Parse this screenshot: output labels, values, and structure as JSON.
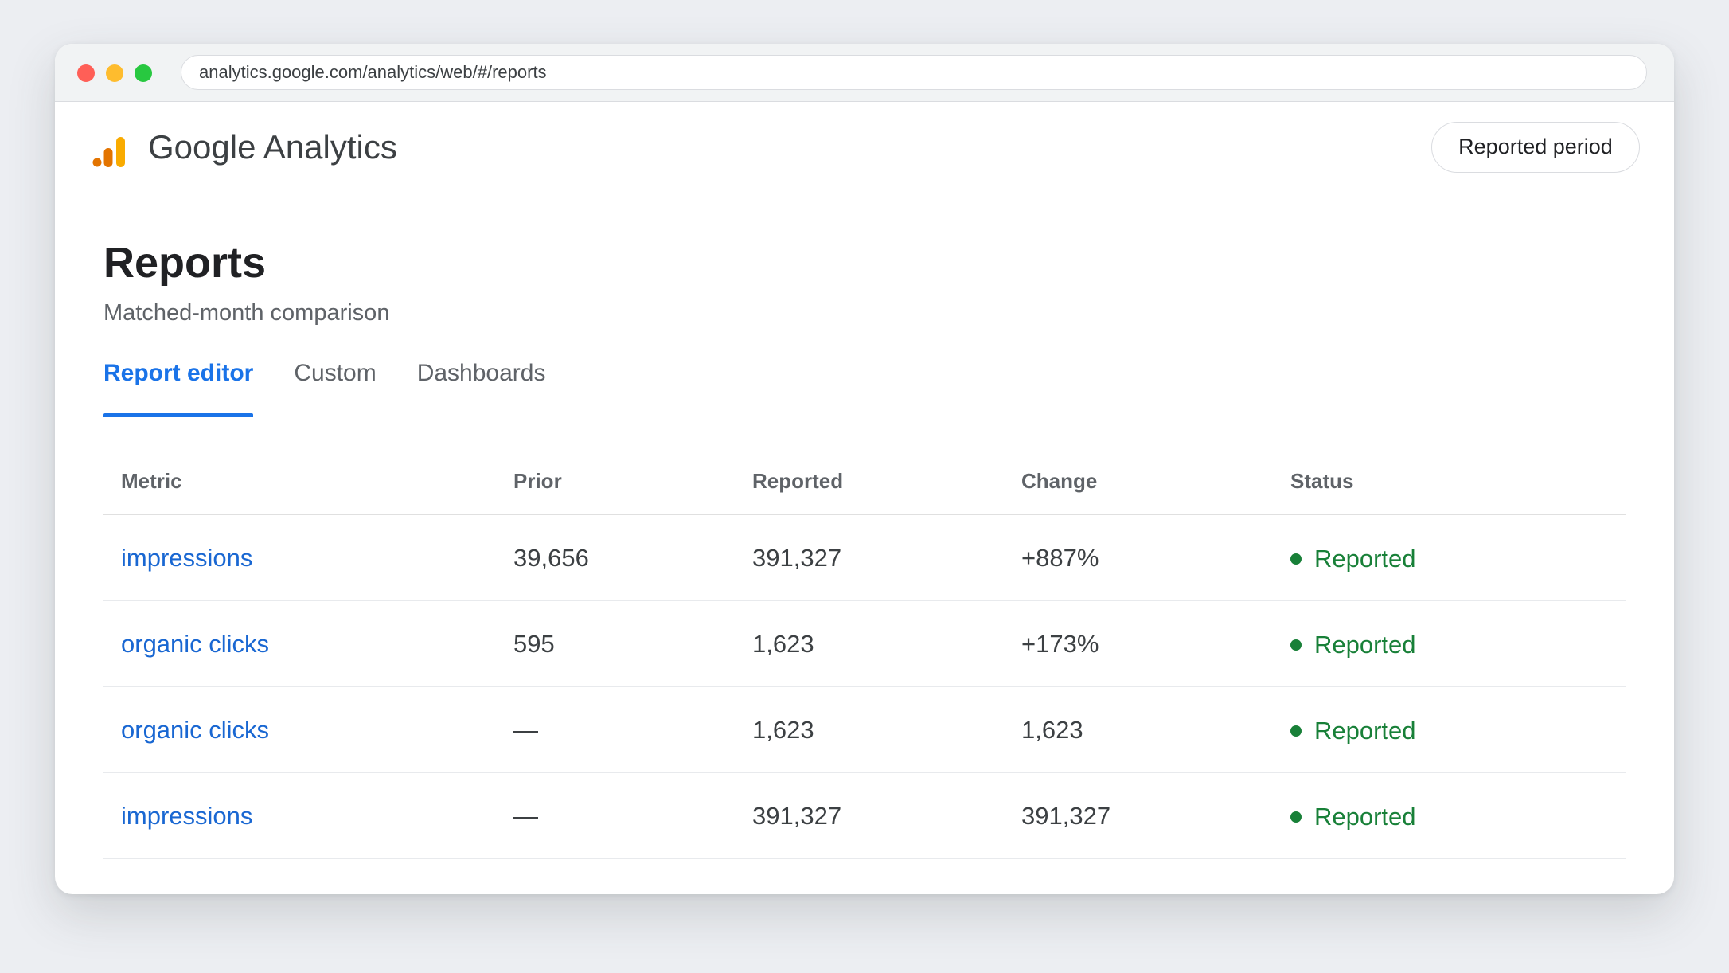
{
  "browser": {
    "url": "analytics.google.com/analytics/web/#/reports"
  },
  "app": {
    "title": "Google Analytics",
    "period_button": "Reported period",
    "logo_colors": [
      "#e37400",
      "#f9ab00"
    ]
  },
  "page": {
    "title": "Reports",
    "subtitle": "Matched-month comparison",
    "tabs": [
      {
        "label": "Report editor",
        "active": true
      },
      {
        "label": "Custom",
        "active": false
      },
      {
        "label": "Dashboards",
        "active": false
      }
    ]
  },
  "table": {
    "headers": [
      "Metric",
      "Prior",
      "Reported",
      "Change",
      "Status"
    ],
    "rows": [
      {
        "metric": "impressions",
        "prior": "39,656",
        "reported": "391,327",
        "change": "+887%",
        "status": "Reported"
      },
      {
        "metric": "organic clicks",
        "prior": "595",
        "reported": "1,623",
        "change": "+173%",
        "status": "Reported"
      },
      {
        "metric": "organic clicks",
        "prior": "—",
        "reported": "1,623",
        "change": "1,623",
        "status": "Reported"
      },
      {
        "metric": "impressions",
        "prior": "—",
        "reported": "391,327",
        "change": "391,327",
        "status": "Reported"
      }
    ]
  },
  "colors": {
    "accent": "#1a73e8",
    "link": "#1967d2",
    "status_ok": "#188038"
  }
}
